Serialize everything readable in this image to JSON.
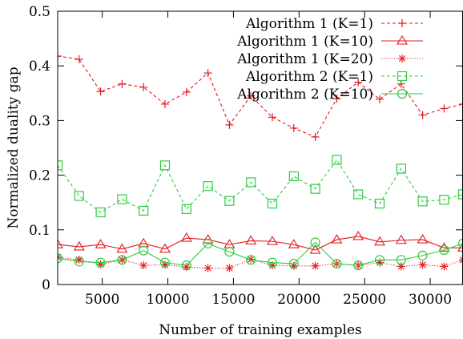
{
  "chart_data": {
    "type": "line",
    "title": "",
    "xlabel": "Number of training examples",
    "ylabel": "Normalized duality gap",
    "xlim": [
      1600,
      32500
    ],
    "ylim": [
      0,
      0.5
    ],
    "xticks": [
      {
        "value": 5000,
        "label": "5000"
      },
      {
        "value": 10000,
        "label": "10000"
      },
      {
        "value": 15000,
        "label": "15000"
      },
      {
        "value": 20000,
        "label": "20000"
      },
      {
        "value": 25000,
        "label": "25000"
      },
      {
        "value": 30000,
        "label": "30000"
      }
    ],
    "yticks": [
      {
        "value": 0,
        "label": "0"
      },
      {
        "value": 0.1,
        "label": "0.1"
      },
      {
        "value": 0.2,
        "label": "0.2"
      },
      {
        "value": 0.3,
        "label": "0.3"
      },
      {
        "value": 0.4,
        "label": "0.4"
      },
      {
        "value": 0.5,
        "label": "0.5"
      }
    ],
    "grid": false,
    "legend_position": "top-right",
    "x": [
      1600,
      3237,
      4873,
      6510,
      8147,
      9783,
      11420,
      13057,
      14693,
      16330,
      17967,
      19603,
      21240,
      22877,
      24513,
      26150,
      27787,
      29423,
      31060,
      32500
    ],
    "series": [
      {
        "name": "Algorithm 1 (K=1)",
        "color": "#e41a1c",
        "dash": "dashed",
        "marker": "plus",
        "values": [
          0.418,
          0.412,
          0.353,
          0.367,
          0.361,
          0.33,
          0.352,
          0.387,
          0.292,
          0.345,
          0.306,
          0.286,
          0.27,
          0.34,
          0.37,
          0.339,
          0.367,
          0.31,
          0.322,
          0.33
        ]
      },
      {
        "name": "Algorithm 1 (K=10)",
        "color": "#e41a1c",
        "dash": "solid",
        "marker": "triangle",
        "values": [
          0.073,
          0.069,
          0.073,
          0.065,
          0.075,
          0.065,
          0.085,
          0.082,
          0.073,
          0.08,
          0.079,
          0.073,
          0.063,
          0.082,
          0.088,
          0.078,
          0.081,
          0.082,
          0.067,
          0.067
        ]
      },
      {
        "name": "Algorithm 1 (K=20)",
        "color": "#e41a1c",
        "dash": "dotted",
        "marker": "star",
        "values": [
          0.05,
          0.045,
          0.037,
          0.045,
          0.035,
          0.036,
          0.032,
          0.03,
          0.03,
          0.046,
          0.035,
          0.034,
          0.034,
          0.038,
          0.035,
          0.04,
          0.033,
          0.036,
          0.033,
          0.045
        ]
      },
      {
        "name": "Algorithm 2 (K=1)",
        "color": "#2ecc40",
        "dash": "dashed",
        "marker": "square",
        "values": [
          0.218,
          0.162,
          0.132,
          0.156,
          0.135,
          0.218,
          0.138,
          0.18,
          0.153,
          0.187,
          0.148,
          0.198,
          0.175,
          0.228,
          0.165,
          0.148,
          0.212,
          0.152,
          0.155,
          0.165
        ]
      },
      {
        "name": "Algorithm 2 (K=10)",
        "color": "#2ecc40",
        "dash": "solid",
        "marker": "circle",
        "values": [
          0.048,
          0.042,
          0.04,
          0.045,
          0.062,
          0.04,
          0.035,
          0.075,
          0.06,
          0.045,
          0.04,
          0.038,
          0.077,
          0.038,
          0.035,
          0.045,
          0.045,
          0.053,
          0.063,
          0.075
        ]
      }
    ]
  }
}
